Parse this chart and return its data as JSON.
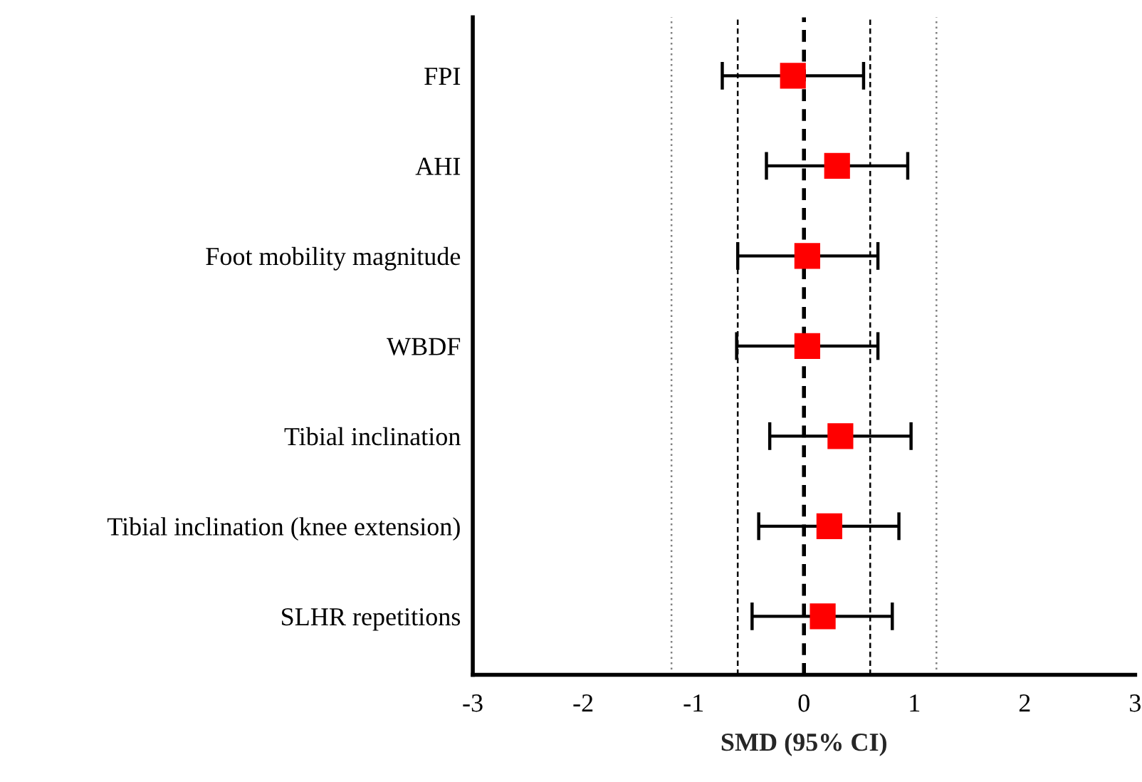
{
  "chart_data": {
    "type": "scatter",
    "orientation": "horizontal",
    "xlabel": "SMD (95% CI)",
    "categories": [
      "FPI",
      "AHI",
      "Foot mobility magnitude",
      "WBDF",
      "Tibial inclination",
      "Tibial inclination (knee extension)",
      "SLHR repetitions"
    ],
    "series": [
      {
        "color": "#ff0000",
        "values": [
          -0.1,
          0.3,
          0.03,
          0.03,
          0.33,
          0.23,
          0.17
        ],
        "errors": [
          [
            -0.74,
            0.54
          ],
          [
            -0.34,
            0.94
          ],
          [
            -0.6,
            0.67
          ],
          [
            -0.61,
            0.67
          ],
          [
            -0.31,
            0.97
          ],
          [
            -0.41,
            0.86
          ],
          [
            -0.47,
            0.8
          ]
        ]
      }
    ],
    "xlim": [
      -3,
      3
    ],
    "xticks": [
      -3,
      -2,
      -1,
      0,
      1,
      2,
      3
    ],
    "marker": "square",
    "grid": false,
    "legend": false,
    "ref_lines": [
      {
        "axis": "x",
        "value": 0,
        "color": "#000000",
        "line_style": "dashed"
      },
      {
        "axis": "x",
        "value": -0.6,
        "color": "#000000",
        "line_style": "dashed"
      },
      {
        "axis": "x",
        "value": 0.6,
        "color": "#000000",
        "line_style": "dashed"
      },
      {
        "axis": "x",
        "value": -1.2,
        "color": "#808080",
        "line_style": "dotted"
      },
      {
        "axis": "x",
        "value": 1.2,
        "color": "#808080",
        "line_style": "dotted"
      }
    ]
  }
}
